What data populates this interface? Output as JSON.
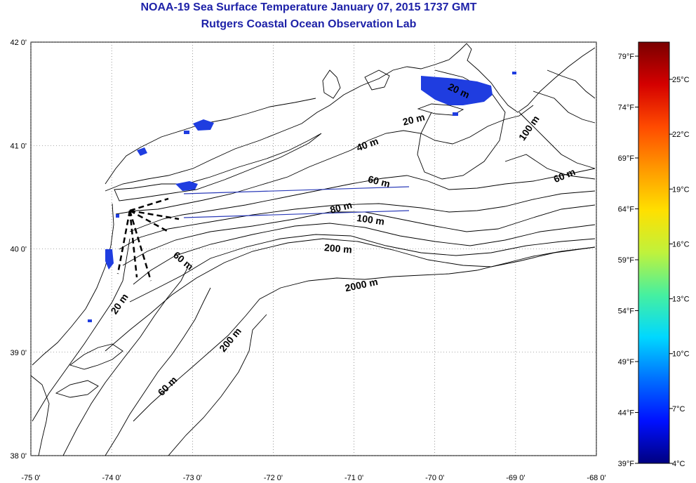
{
  "header": {
    "title": "NOAA-19 Sea Surface Temperature January 07, 2015 1737 GMT",
    "subtitle": "Rutgers Coastal Ocean Observation Lab"
  },
  "map": {
    "lon_range": [
      -75,
      -68
    ],
    "lat_range": [
      38,
      42
    ],
    "lon_ticks": [
      {
        "value": -75,
        "label": "-75 0'"
      },
      {
        "value": -74,
        "label": "-74 0'"
      },
      {
        "value": -73,
        "label": "-73 0'"
      },
      {
        "value": -72,
        "label": "-72 0'"
      },
      {
        "value": -71,
        "label": "-71 0'"
      },
      {
        "value": -70,
        "label": "-70 0'"
      },
      {
        "value": -69,
        "label": "-69 0'"
      },
      {
        "value": -68,
        "label": "-68 0'"
      }
    ],
    "lat_ticks": [
      {
        "value": 38,
        "label": "38 0'"
      },
      {
        "value": 39,
        "label": "39 0'"
      },
      {
        "value": 40,
        "label": "40 0'"
      },
      {
        "value": 41,
        "label": "41 0'"
      },
      {
        "value": 42,
        "label": "42 0'"
      }
    ],
    "grid": "dotted",
    "land_color": "#ffffff",
    "line_color": "#000000",
    "sst_color": "#1f3de0",
    "transect_color": "#2a3ab8",
    "contour_labels": [
      {
        "text": "20 m",
        "lon": -70.25,
        "lat": 41.22,
        "angle": -14
      },
      {
        "text": "40 m",
        "lon": -70.82,
        "lat": 40.98,
        "angle": -20
      },
      {
        "text": "60 m",
        "lon": -70.7,
        "lat": 40.62,
        "angle": 14
      },
      {
        "text": "80 m",
        "lon": -71.15,
        "lat": 40.37,
        "angle": -15
      },
      {
        "text": "100 m",
        "lon": -70.8,
        "lat": 40.25,
        "angle": 8
      },
      {
        "text": "200 m",
        "lon": -71.2,
        "lat": 39.97,
        "angle": 5
      },
      {
        "text": "2000 m",
        "lon": -70.9,
        "lat": 39.62,
        "angle": -12
      },
      {
        "text": "100 m",
        "lon": -68.8,
        "lat": 41.15,
        "angle": -55
      },
      {
        "text": "60 m",
        "lon": -68.38,
        "lat": 40.68,
        "angle": -22
      },
      {
        "text": "20 m",
        "lon": -69.72,
        "lat": 41.5,
        "angle": 25
      },
      {
        "text": "60 m",
        "lon": -73.14,
        "lat": 39.86,
        "angle": 40
      },
      {
        "text": "20 m",
        "lon": -73.87,
        "lat": 39.45,
        "angle": -55
      },
      {
        "text": "200 m",
        "lon": -72.5,
        "lat": 39.1,
        "angle": -50
      },
      {
        "text": "60 m",
        "lon": -73.28,
        "lat": 38.65,
        "angle": -45
      }
    ]
  },
  "colorbar": {
    "f_labels": [
      "79°F",
      "74°F",
      "69°F",
      "64°F",
      "59°F",
      "54°F",
      "49°F",
      "44°F",
      "39°F"
    ],
    "c_labels": [
      "25°C",
      "22°C",
      "19°C",
      "16°C",
      "13°C",
      "10°C",
      "7°C",
      "4°C"
    ],
    "colors": [
      "#7a0000",
      "#d40000",
      "#ff4a00",
      "#ff9800",
      "#ffe000",
      "#bff23c",
      "#46f0a0",
      "#00d8ff",
      "#0070ff",
      "#0010ff",
      "#000080"
    ]
  }
}
